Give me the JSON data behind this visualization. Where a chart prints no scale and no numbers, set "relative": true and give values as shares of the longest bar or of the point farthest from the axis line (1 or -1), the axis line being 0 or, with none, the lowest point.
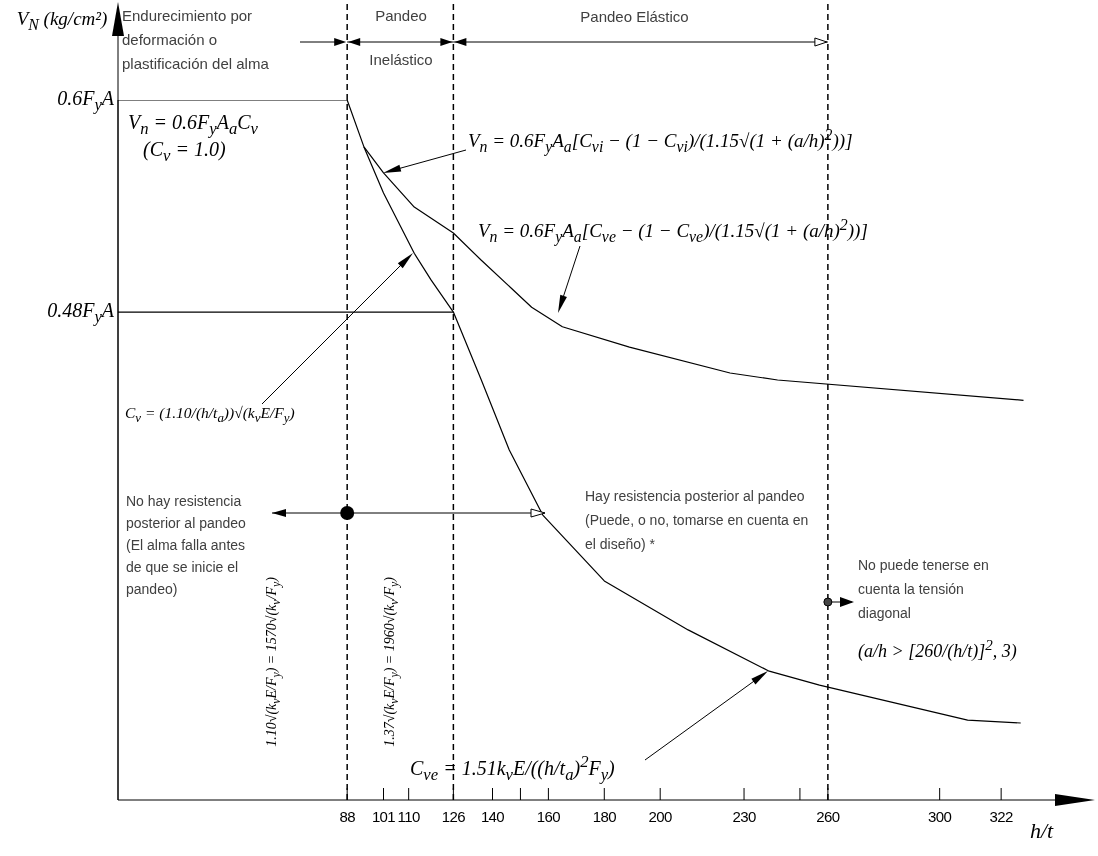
{
  "chart_data": {
    "type": "line",
    "xlabel": "h/t",
    "ylabel": "V$_{N}$ (kg/cm²)",
    "relative": true,
    "xlim": [
      6,
      352
    ],
    "xticks": [
      88,
      101,
      110,
      126,
      140,
      {
        "value": 150,
        "label": null
      },
      160,
      180,
      200,
      230,
      {
        "value": 250,
        "label": null
      },
      260,
      300,
      322
    ],
    "grid": false,
    "marker": "none",
    "line_style": "solid",
    "series": [
      {
        "color": "#000000",
        "x": [
          6,
          88,
          94,
          101,
          112,
          118,
          126,
          136,
          146,
          158,
          180,
          210,
          239,
          257,
          310,
          329
        ],
        "values": [
          1,
          1,
          0.933,
          0.867,
          0.781,
          0.743,
          0.697,
          0.6,
          0.5,
          0.407,
          0.313,
          0.243,
          0.184,
          0.164,
          0.114,
          0.11
        ]
      },
      {
        "color": "#000000",
        "x": [
          94,
          101,
          112,
          126,
          136,
          154,
          165,
          189,
          225,
          242,
          330
        ],
        "values": [
          0.933,
          0.896,
          0.847,
          0.81,
          0.771,
          0.704,
          0.676,
          0.647,
          0.61,
          0.6,
          0.571
        ]
      },
      {
        "color": "#000000",
        "x": [
          6,
          126
        ],
        "values": [
          0.697,
          0.697
        ]
      }
    ],
    "ref_lines": [
      {
        "axis": "x",
        "value": 88,
        "line_style": "dashed"
      },
      {
        "axis": "x",
        "value": 126,
        "line_style": "dashed"
      },
      {
        "axis": "x",
        "value": 260,
        "line_style": "dashed"
      }
    ],
    "annotations": [
      "Endurecimiento por deformación o plastificación del alma",
      "Pandeo Inelástico",
      "Pandeo Elástico",
      "V$_{n}$ = 0.6F$_{y}$A$_{a}$C$_{v}$",
      "(C$_{v}$ = 1.0)",
      "V$_{n}$ = 0.6F$_{y}$A$_{a}$[C$_{vi}$ − (1 − C$_{vi}$)/(1.15√(1 + (a/h)$^{2}$))]",
      "V$_{n}$ = 0.6F$_{y}$A$_{a}$[C$_{ve}$ − (1 − C$_{ve}$)/(1.15√(1 + (a/h)$^{2}$))]",
      "C$_{v}$ = (1.10/(h/t$_{a}$))√(k$_{v}$E/F$_{y}$)",
      "No hay resistencia posterior al pandeo (El alma falla antes de que se inicie el pandeo)",
      "Hay resistencia posterior al pandeo (Puede, o no, tomarse en cuenta en el diseño) *",
      "No puede tenerse en cuenta la tensión diagonal",
      "(a/h > [260/(h/t)]$^{2}$, 3)",
      "1.10√(k$_{v}$E/F$_{y}$) = 1570√(k$_{v}$/F$_{y}$)",
      "1.37√(k$_{v}$E/F$_{y}$) = 1960√(k$_{v}$/F$_{y}$)",
      "C$_{ve}$ = 1.51k$_{v}$E/((h/t$_{a}$)$^{2}$F$_{y}$)",
      {
        "text": "0.6F$_{y}$A",
        "x": 6,
        "y": 1
      },
      {
        "text": "0.48F$_{y}$A",
        "x": 6,
        "y": 0.697
      }
    ]
  }
}
